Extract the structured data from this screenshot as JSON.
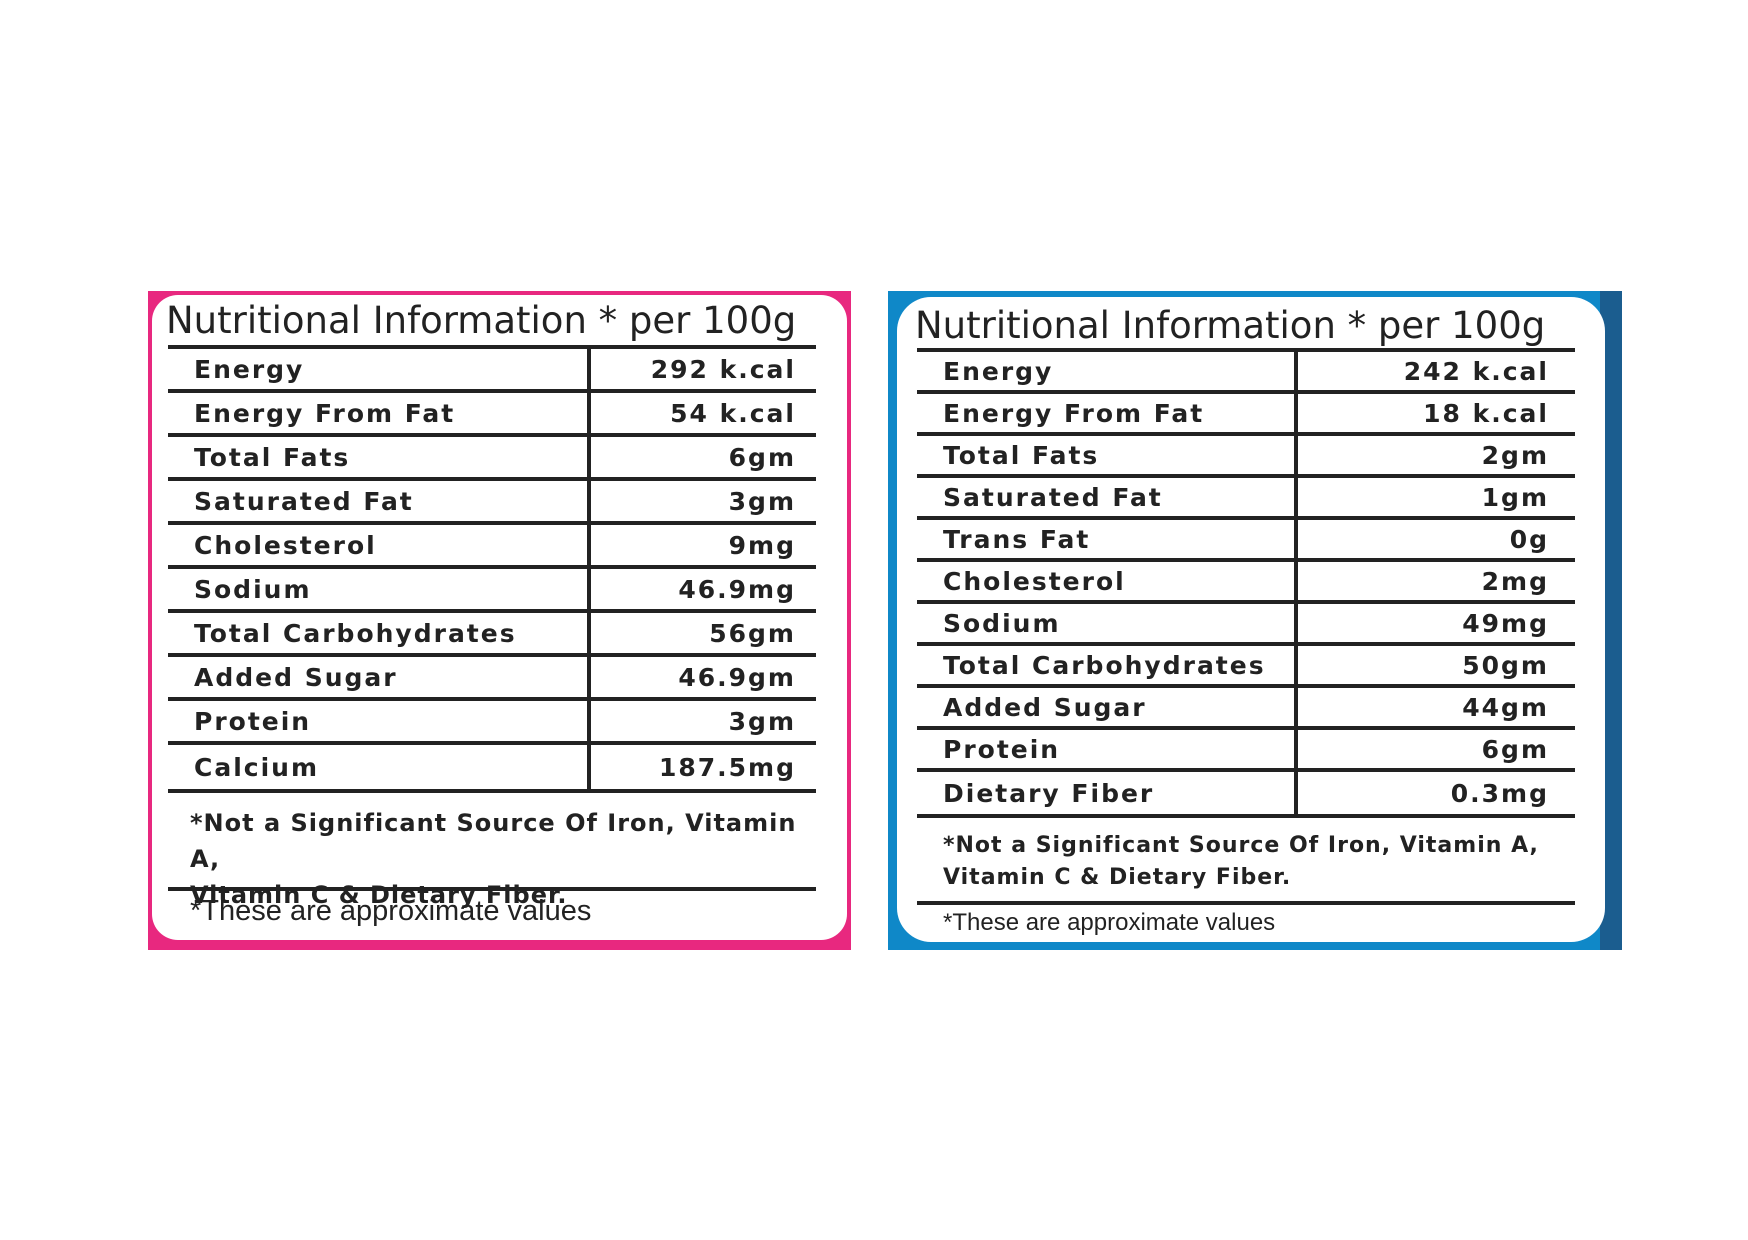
{
  "colors": {
    "left_border": "#e8287f",
    "right_border": "#0f88c8",
    "right_border_dark": "#1b5d8f",
    "text": "#222222"
  },
  "left_panel": {
    "title": "Nutritional Information * per 100g",
    "rows": [
      {
        "label": "Energy",
        "value": "292 k.cal"
      },
      {
        "label": "Energy From Fat",
        "value": "54 k.cal"
      },
      {
        "label": "Total Fats",
        "value": "6gm"
      },
      {
        "label": "Saturated Fat",
        "value": "3gm"
      },
      {
        "label": "Cholesterol",
        "value": "9mg"
      },
      {
        "label": "Sodium",
        "value": "46.9mg"
      },
      {
        "label": "Total Carbohydrates",
        "value": "56gm"
      },
      {
        "label": "Added Sugar",
        "value": "46.9gm"
      },
      {
        "label": "Protein",
        "value": "3gm"
      },
      {
        "label": "Calcium",
        "value": "187.5mg"
      }
    ],
    "note_line1": "*Not a Significant Source Of Iron, Vitamin A,",
    "note_line2": "Vitamin C & Dietary Fiber.",
    "approx": "*These are approximate values"
  },
  "right_panel": {
    "title": "Nutritional Information * per 100g",
    "rows": [
      {
        "label": "Energy",
        "value": "242 k.cal"
      },
      {
        "label": "Energy From Fat",
        "value": "18 k.cal"
      },
      {
        "label": "Total Fats",
        "value": "2gm"
      },
      {
        "label": "Saturated Fat",
        "value": "1gm"
      },
      {
        "label": "Trans Fat",
        "value": "0g"
      },
      {
        "label": "Cholesterol",
        "value": "2mg"
      },
      {
        "label": "Sodium",
        "value": "49mg"
      },
      {
        "label": "Total Carbohydrates",
        "value": "50gm"
      },
      {
        "label": "Added Sugar",
        "value": "44gm"
      },
      {
        "label": "Protein",
        "value": "6gm"
      },
      {
        "label": "Dietary Fiber",
        "value": "0.3mg"
      }
    ],
    "note_line1": "*Not a Significant Source Of Iron, Vitamin A,",
    "note_line2": "Vitamin C & Dietary Fiber.",
    "approx": "*These are approximate values"
  }
}
